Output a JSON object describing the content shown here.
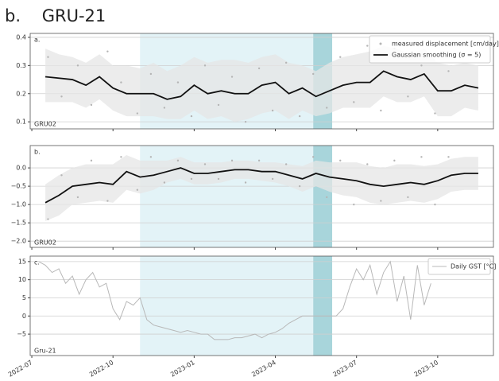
{
  "title": "b.    GRU-21",
  "chart_data": [
    {
      "type": "line",
      "label": "a.",
      "site": "GRU02",
      "ylim": [
        0.075,
        0.414
      ],
      "yticks": [
        0.1,
        0.2,
        0.3,
        0.4
      ],
      "grid": true,
      "legend": "upper right",
      "spans": [
        {
          "start": 4.0,
          "end": 10.4,
          "color": "#e3f3f7"
        },
        {
          "start": 10.4,
          "end": 11.1,
          "color": "#a8d5db"
        }
      ],
      "series": [
        {
          "name": "measured displacement [cm/day]",
          "style": "points",
          "color": "#b5b5b5",
          "x": [
            0.6,
            1.1,
            1.7,
            2.2,
            2.8,
            3.3,
            3.9,
            4.4,
            4.9,
            5.4,
            5.9,
            6.4,
            6.9,
            7.4,
            7.9,
            8.4,
            8.9,
            9.4,
            9.9,
            10.4,
            10.9,
            11.4,
            11.9,
            12.4,
            12.9,
            13.4,
            13.9,
            14.4,
            14.9,
            15.4
          ],
          "values": [
            0.33,
            0.19,
            0.3,
            0.16,
            0.35,
            0.24,
            0.13,
            0.27,
            0.15,
            0.24,
            0.12,
            0.3,
            0.16,
            0.26,
            0.1,
            0.29,
            0.14,
            0.31,
            0.12,
            0.27,
            0.15,
            0.33,
            0.17,
            0.37,
            0.14,
            0.36,
            0.19,
            0.3,
            0.13,
            0.28
          ]
        },
        {
          "name": "Gaussian smoothing (σ = 5)",
          "style": "line",
          "color": "#111111",
          "x": [
            0.5,
            1,
            1.5,
            2,
            2.5,
            3,
            3.5,
            4,
            4.5,
            5,
            5.5,
            6,
            6.5,
            7,
            7.5,
            8,
            8.5,
            9,
            9.5,
            10,
            10.5,
            11,
            11.5,
            12,
            12.5,
            13,
            13.5,
            14,
            14.5,
            15,
            15.5,
            16,
            16.5
          ],
          "values": [
            0.26,
            0.255,
            0.25,
            0.23,
            0.26,
            0.22,
            0.2,
            0.2,
            0.2,
            0.18,
            0.19,
            0.23,
            0.2,
            0.21,
            0.2,
            0.2,
            0.23,
            0.24,
            0.2,
            0.22,
            0.19,
            0.21,
            0.23,
            0.24,
            0.24,
            0.28,
            0.26,
            0.25,
            0.27,
            0.21,
            0.21,
            0.23,
            0.22
          ],
          "band": {
            "color": "#e6e6e6",
            "upper": [
              0.36,
              0.34,
              0.33,
              0.31,
              0.34,
              0.3,
              0.3,
              0.29,
              0.31,
              0.28,
              0.3,
              0.33,
              0.31,
              0.32,
              0.32,
              0.31,
              0.33,
              0.34,
              0.31,
              0.3,
              0.28,
              0.31,
              0.33,
              0.34,
              0.35,
              0.37,
              0.36,
              0.34,
              0.36,
              0.31,
              0.3,
              0.31,
              0.3
            ],
            "lower": [
              0.17,
              0.17,
              0.17,
              0.15,
              0.18,
              0.14,
              0.12,
              0.12,
              0.12,
              0.11,
              0.11,
              0.14,
              0.11,
              0.12,
              0.1,
              0.11,
              0.13,
              0.14,
              0.11,
              0.14,
              0.12,
              0.13,
              0.15,
              0.15,
              0.15,
              0.19,
              0.17,
              0.17,
              0.19,
              0.12,
              0.12,
              0.15,
              0.14
            ]
          }
        }
      ]
    },
    {
      "type": "line",
      "label": "b.",
      "site": "GRU02",
      "ylim": [
        -2.17,
        0.61
      ],
      "yticks": [
        {
          "value": 0,
          "label": "0.0"
        },
        {
          "value": -0.5,
          "label": "−0.5"
        },
        {
          "value": -1,
          "label": "−1.0"
        },
        {
          "value": -1.5,
          "label": "−1.5"
        },
        {
          "value": -2,
          "label": "−2.0"
        }
      ],
      "grid": true,
      "spans": [
        {
          "start": 4.0,
          "end": 10.4,
          "color": "#e3f3f7"
        },
        {
          "start": 10.4,
          "end": 11.1,
          "color": "#a8d5db"
        }
      ],
      "series": [
        {
          "style": "points",
          "color": "#b5b5b5",
          "x": [
            0.6,
            1.1,
            1.7,
            2.2,
            2.8,
            3.3,
            3.9,
            4.4,
            4.9,
            5.4,
            5.9,
            6.4,
            6.9,
            7.4,
            7.9,
            8.4,
            8.9,
            9.4,
            9.9,
            10.4,
            10.9,
            11.4,
            11.9,
            12.4,
            12.9,
            13.4,
            13.9,
            14.4,
            14.9,
            15.4
          ],
          "values": [
            -1.4,
            -0.2,
            -0.8,
            0.2,
            -0.9,
            0.3,
            -0.6,
            0.3,
            -0.4,
            0.2,
            -0.3,
            0.1,
            -0.3,
            0.2,
            -0.4,
            0.2,
            -0.3,
            0.1,
            -0.5,
            0.3,
            -0.8,
            0.2,
            -1.0,
            0.1,
            -0.9,
            0.2,
            -0.8,
            0.3,
            -1.0,
            0.3
          ]
        },
        {
          "style": "line",
          "color": "#111111",
          "x": [
            0.5,
            1,
            1.5,
            2,
            2.5,
            3,
            3.5,
            4,
            4.5,
            5,
            5.5,
            6,
            6.5,
            7,
            7.5,
            8,
            8.5,
            9,
            9.5,
            10,
            10.5,
            11,
            11.5,
            12,
            12.5,
            13,
            13.5,
            14,
            14.5,
            15,
            15.5,
            16,
            16.5
          ],
          "values": [
            -0.95,
            -0.75,
            -0.5,
            -0.45,
            -0.4,
            -0.45,
            -0.1,
            -0.25,
            -0.2,
            -0.1,
            0.0,
            -0.15,
            -0.15,
            -0.1,
            -0.05,
            -0.05,
            -0.1,
            -0.1,
            -0.2,
            -0.3,
            -0.15,
            -0.25,
            -0.3,
            -0.35,
            -0.45,
            -0.5,
            -0.45,
            -0.4,
            -0.45,
            -0.35,
            -0.2,
            -0.15,
            -0.15
          ],
          "band": {
            "color": "#e6e6e6",
            "upper": [
              -0.45,
              -0.2,
              0.0,
              0.1,
              0.1,
              0.1,
              0.35,
              0.2,
              0.2,
              0.2,
              0.3,
              0.15,
              0.15,
              0.15,
              0.2,
              0.2,
              0.15,
              0.15,
              0.1,
              0.05,
              0.2,
              0.15,
              0.15,
              0.15,
              0.05,
              0.0,
              0.1,
              0.1,
              0.05,
              0.1,
              0.25,
              0.3,
              0.3
            ],
            "lower": [
              -1.45,
              -1.3,
              -1.0,
              -0.95,
              -0.9,
              -0.95,
              -0.6,
              -0.7,
              -0.6,
              -0.4,
              -0.3,
              -0.45,
              -0.45,
              -0.4,
              -0.3,
              -0.3,
              -0.35,
              -0.4,
              -0.5,
              -0.65,
              -0.5,
              -0.65,
              -0.75,
              -0.8,
              -0.95,
              -1.0,
              -0.95,
              -0.9,
              -0.95,
              -0.85,
              -0.65,
              -0.6,
              -0.6
            ]
          }
        }
      ]
    },
    {
      "type": "line",
      "label": "c.",
      "site": "Gru-21",
      "ylim": [
        -10.9,
        16.5
      ],
      "yticks": [
        {
          "value": -5,
          "label": "−5"
        },
        0,
        5,
        10,
        15
      ],
      "grid": true,
      "legend": "upper right",
      "xlim": [
        -0.06,
        17.06
      ],
      "xticks": [
        {
          "value": 0,
          "label": "2022-07"
        },
        {
          "value": 3,
          "label": "2022-10"
        },
        {
          "value": 6,
          "label": "2023-01"
        },
        {
          "value": 9,
          "label": "2023-04"
        },
        {
          "value": 12,
          "label": "2023-07"
        },
        {
          "value": 15,
          "label": "2023-10"
        }
      ],
      "spans": [
        {
          "start": 4.0,
          "end": 10.4,
          "color": "#e3f3f7"
        },
        {
          "start": 10.4,
          "end": 11.1,
          "color": "#a8d5db"
        }
      ],
      "series": [
        {
          "name": "Daily GST [°C]",
          "style": "line",
          "color": "#b8b8b8",
          "x": [
            0.25,
            0.5,
            0.75,
            1,
            1.25,
            1.5,
            1.75,
            2,
            2.25,
            2.5,
            2.75,
            3,
            3.25,
            3.5,
            3.75,
            4,
            4.25,
            4.5,
            4.75,
            5,
            5.25,
            5.5,
            5.75,
            6,
            6.25,
            6.5,
            6.75,
            7,
            7.25,
            7.5,
            7.75,
            8,
            8.25,
            8.5,
            8.75,
            9,
            9.25,
            9.5,
            9.75,
            10,
            10.25,
            10.5,
            10.75,
            11,
            11.25,
            11.5,
            11.75,
            12,
            12.25,
            12.5,
            12.75,
            13,
            13.25,
            13.5,
            13.75,
            14,
            14.25,
            14.5,
            14.75
          ],
          "values": [
            15,
            14,
            12,
            13,
            9,
            11,
            6,
            10,
            12,
            8,
            9,
            2,
            -1,
            4,
            3,
            5,
            -1,
            -2.5,
            -3,
            -3.5,
            -4,
            -4.5,
            -4,
            -4.5,
            -5,
            -5,
            -6.5,
            -6.5,
            -6.5,
            -6,
            -6,
            -5.5,
            -5,
            -6,
            -5,
            -4.5,
            -3.5,
            -2,
            -1,
            0,
            0,
            0,
            0,
            0,
            0,
            2,
            8,
            13,
            10,
            14,
            6,
            12,
            15,
            4,
            11,
            -1,
            14,
            3,
            9
          ]
        }
      ]
    }
  ]
}
